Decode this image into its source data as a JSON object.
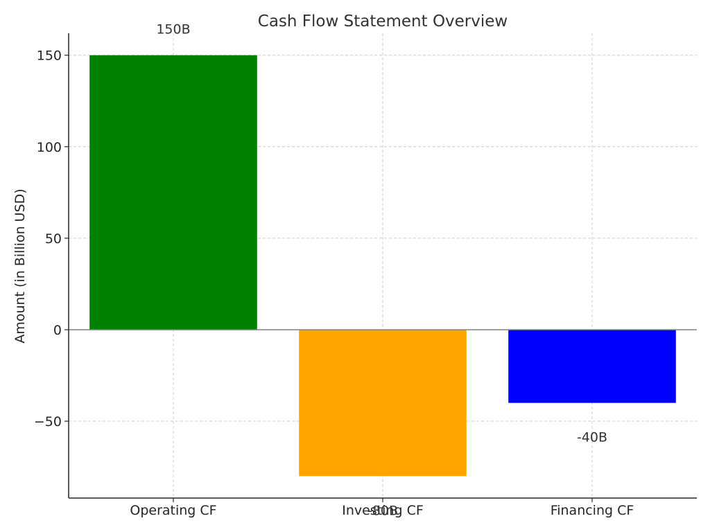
{
  "chart_data": {
    "type": "bar",
    "title": "Cash Flow Statement Overview",
    "xlabel": "",
    "ylabel": "Amount (in Billion USD)",
    "categories": [
      "Operating CF",
      "Investing CF",
      "Financing CF"
    ],
    "values": [
      150,
      -80,
      -40
    ],
    "data_labels": [
      "150B",
      "-80B",
      "-40B"
    ],
    "colors": [
      "#008000",
      "#FFA500",
      "#0000FF"
    ],
    "ylim": [
      -92,
      162
    ],
    "yticks": [
      150,
      100,
      50,
      0,
      -50
    ],
    "ytick_labels": [
      "150",
      "100",
      "50",
      "0",
      "−50"
    ],
    "grid": true,
    "zero_line": true
  }
}
